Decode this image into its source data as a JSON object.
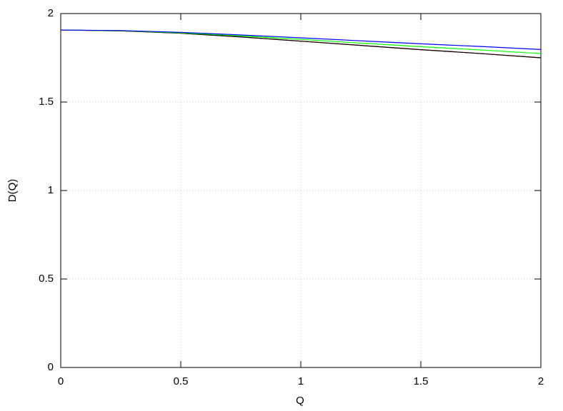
{
  "chart_data": {
    "type": "line",
    "xlabel": "Q",
    "ylabel": "D(Q)",
    "x": [
      0,
      0.25,
      0.5,
      0.75,
      1,
      1.25,
      1.5,
      1.75,
      2
    ],
    "series": [
      {
        "color": "#ff0000",
        "values": [
          1.907,
          1.902,
          1.889,
          1.868,
          1.844,
          1.82,
          1.796,
          1.774,
          1.75
        ]
      },
      {
        "color": "#000000",
        "values": [
          1.907,
          1.902,
          1.889,
          1.868,
          1.844,
          1.82,
          1.796,
          1.774,
          1.75
        ]
      },
      {
        "color": "#00ff00",
        "values": [
          1.907,
          1.903,
          1.891,
          1.874,
          1.854,
          1.833,
          1.813,
          1.794,
          1.774
        ]
      },
      {
        "color": "#0000ff",
        "values": [
          1.907,
          1.904,
          1.894,
          1.879,
          1.863,
          1.846,
          1.829,
          1.814,
          1.797
        ]
      }
    ],
    "xlim": [
      0,
      2
    ],
    "xticks": [
      0,
      0.5,
      1,
      1.5,
      2
    ],
    "ylim": [
      0,
      2
    ],
    "yticks": [
      0,
      0.5,
      1,
      1.5,
      2
    ],
    "grid": true
  }
}
